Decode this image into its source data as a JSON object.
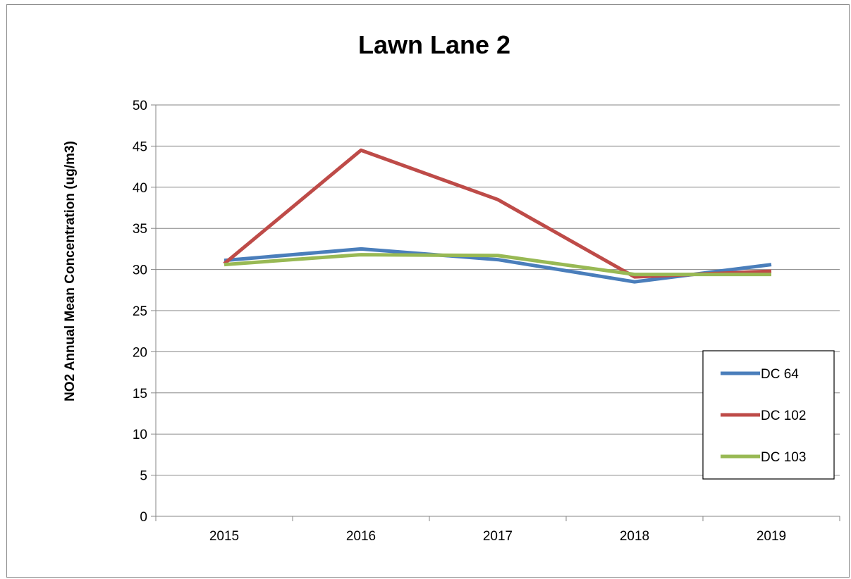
{
  "chart_data": {
    "type": "line",
    "title": "Lawn Lane 2",
    "xlabel": "",
    "ylabel": "NO2 Annual Mean Concentration (ug/m3)",
    "categories": [
      "2015",
      "2016",
      "2017",
      "2018",
      "2019"
    ],
    "ylim": [
      0,
      50
    ],
    "yticks": [
      "0",
      "5",
      "10",
      "15",
      "20",
      "25",
      "30",
      "35",
      "40",
      "45",
      "50"
    ],
    "grid": true,
    "legend_position": "right",
    "series": [
      {
        "name": "DC 64",
        "color": "#4a7ebb",
        "values": [
          31.1,
          32.5,
          31.2,
          28.5,
          30.6
        ]
      },
      {
        "name": "DC 102",
        "color": "#be4b48",
        "values": [
          30.7,
          44.5,
          38.5,
          29.1,
          29.8
        ]
      },
      {
        "name": "DC 103",
        "color": "#98b954",
        "values": [
          30.6,
          31.8,
          31.7,
          29.4,
          29.4
        ]
      }
    ]
  }
}
